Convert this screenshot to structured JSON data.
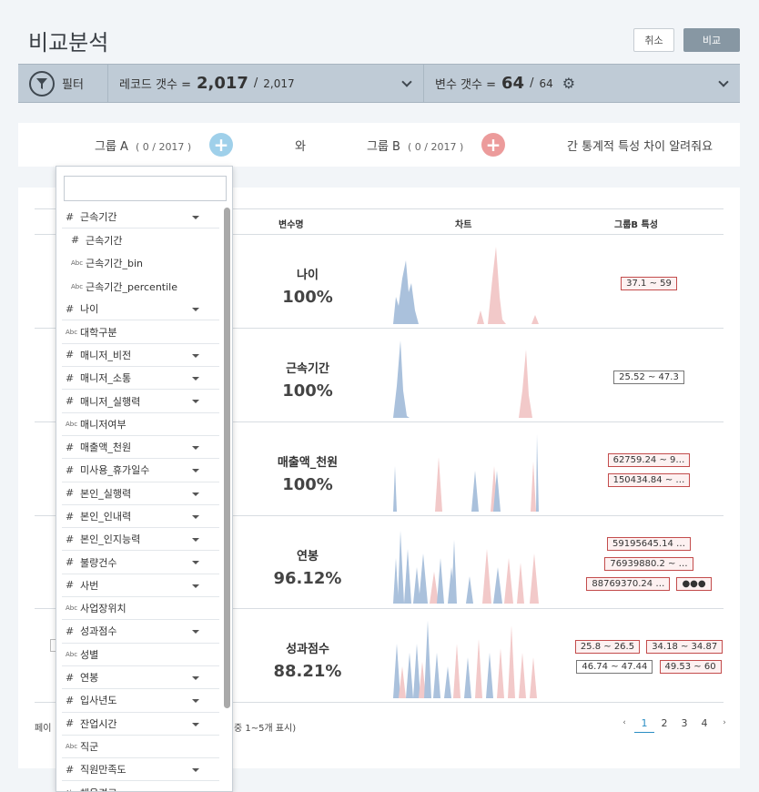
{
  "page": {
    "title": "비교분석",
    "cancel_label": "취소",
    "compare_label": "비교"
  },
  "filter_bar": {
    "filter_label": "필터",
    "records_label": "레코드 갯수 =",
    "records_value": "2,017",
    "records_sep": "/",
    "records_total": "2,017",
    "vars_label": "변수 갯수 =",
    "vars_value": "64",
    "vars_sep": "/",
    "vars_total": "64"
  },
  "groups": {
    "a_label": "그룹 A",
    "a_count": "( 0 / 2017 )",
    "connector": "와",
    "b_label": "그룹 B",
    "b_count": "( 0 / 2017 )",
    "question": "간 통계적 특성 차이 알려줘요",
    "colors": {
      "a": "#9fd0ea",
      "b": "#ec9b9b"
    }
  },
  "table": {
    "headers": {
      "varname": "변수명",
      "chart": "차트",
      "group_b": "그룹B 특성"
    },
    "rows": [
      {
        "name": "나이",
        "pct": "100%",
        "tags": [
          "37.1 ~ 59"
        ]
      },
      {
        "name": "근속기간",
        "pct": "100%",
        "tags": [
          "25.52 ~ 47.3"
        ]
      },
      {
        "name": "매출액_천원",
        "pct": "100%",
        "tags": [
          "62759.24 ~ 9…",
          "150434.84 ~ …"
        ]
      },
      {
        "name": "연봉",
        "pct": "96.12%",
        "tags": [
          "59195645.14 …",
          "76939880.2 ~ …",
          "88769370.24 …",
          "●●●"
        ]
      },
      {
        "name": "성과점수",
        "pct": "88.21%",
        "tags": [
          "25.8 ~ 26.5",
          "34.18 ~ 34.87",
          "46.74 ~ 47.44",
          "49.53 ~ 60"
        ]
      }
    ],
    "pager_prefix": "페이",
    "pager_info": "중 1~5개 표시)",
    "pages": [
      "1",
      "2",
      "3",
      "4"
    ],
    "prev": "‹",
    "next": "›"
  },
  "dropdown": {
    "search_placeholder": "",
    "items": [
      {
        "type": "#",
        "label": "근속기간",
        "caret": true
      },
      {
        "type": "#",
        "label": "근속기간",
        "caret": false,
        "sub": true
      },
      {
        "type": "Abc",
        "label": "근속기간_bin",
        "caret": false,
        "sub": true
      },
      {
        "type": "Abc",
        "label": "근속기간_percentile",
        "caret": false,
        "sub": true
      },
      {
        "type": "#",
        "label": "나이",
        "caret": true
      },
      {
        "type": "Abc",
        "label": "대학구분",
        "caret": false
      },
      {
        "type": "#",
        "label": "매니저_비전",
        "caret": true
      },
      {
        "type": "#",
        "label": "매니저_소통",
        "caret": true
      },
      {
        "type": "#",
        "label": "매니저_실행력",
        "caret": true
      },
      {
        "type": "Abc",
        "label": "매니저여부",
        "caret": false
      },
      {
        "type": "#",
        "label": "매출액_천원",
        "caret": true
      },
      {
        "type": "#",
        "label": "미사용_휴가일수",
        "caret": true
      },
      {
        "type": "#",
        "label": "본인_실행력",
        "caret": true
      },
      {
        "type": "#",
        "label": "본인_인내력",
        "caret": true
      },
      {
        "type": "#",
        "label": "본인_인지능력",
        "caret": true
      },
      {
        "type": "#",
        "label": "불량건수",
        "caret": true
      },
      {
        "type": "#",
        "label": "사번",
        "caret": true
      },
      {
        "type": "Abc",
        "label": "사업장위치",
        "caret": false
      },
      {
        "type": "#",
        "label": "성과점수",
        "caret": true
      },
      {
        "type": "Abc",
        "label": "성별",
        "caret": false
      },
      {
        "type": "#",
        "label": "연봉",
        "caret": true
      },
      {
        "type": "#",
        "label": "입사년도",
        "caret": true
      },
      {
        "type": "#",
        "label": "잔업시간",
        "caret": true
      },
      {
        "type": "Abc",
        "label": "직군",
        "caret": false
      },
      {
        "type": "#",
        "label": "직원만족도",
        "caret": true
      },
      {
        "type": "Abc",
        "label": "채용경로",
        "caret": false
      }
    ]
  }
}
